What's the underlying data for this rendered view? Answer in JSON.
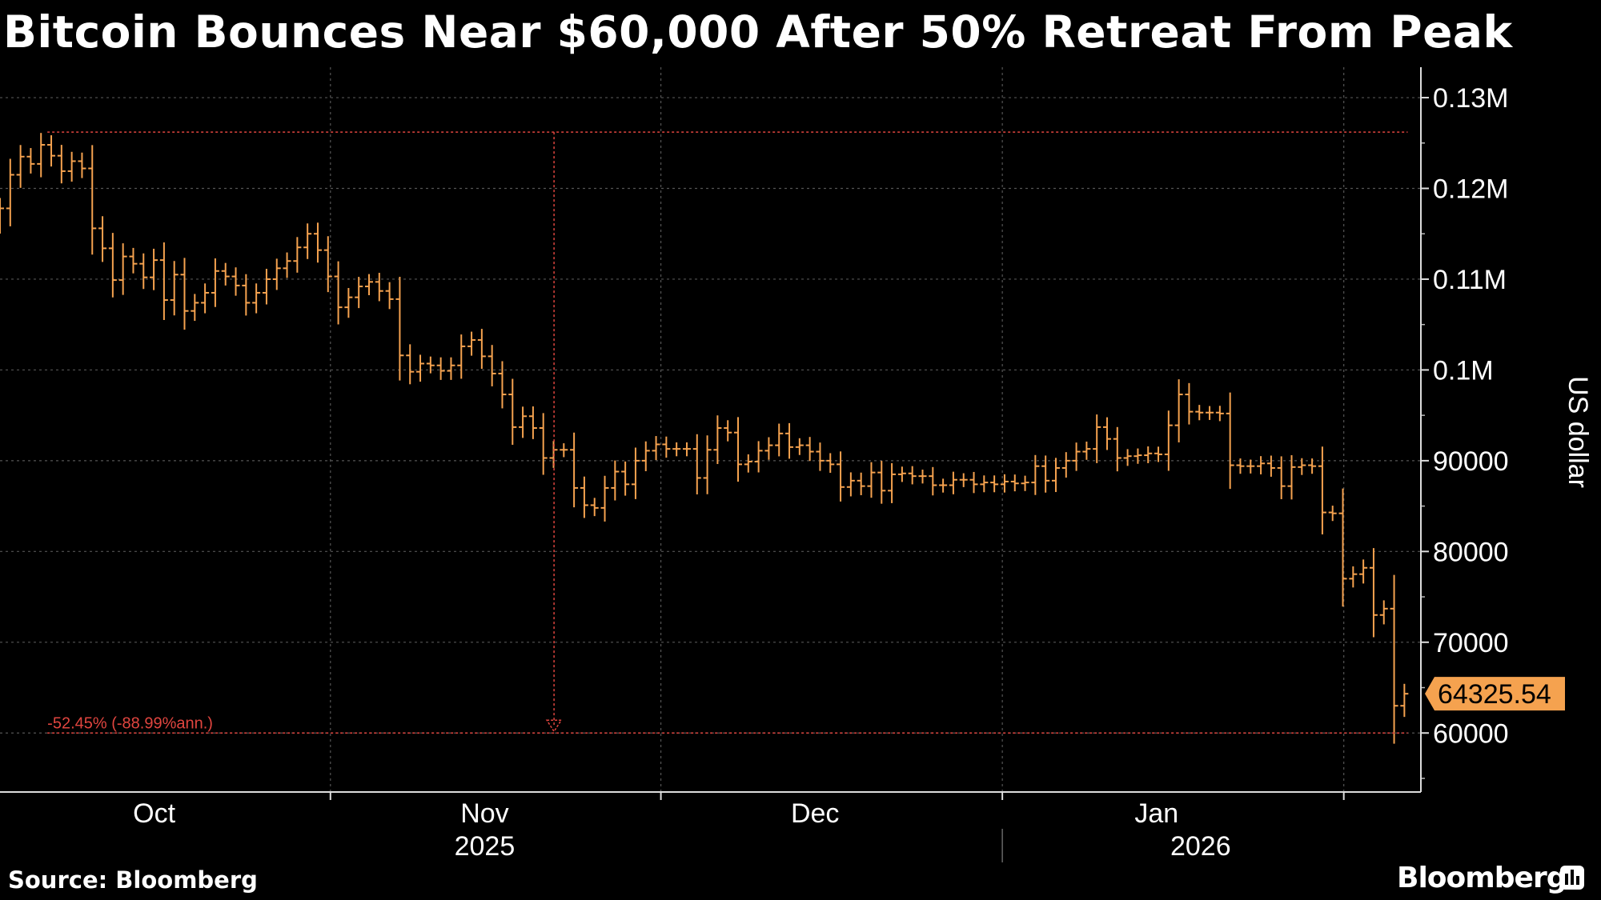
{
  "title": "Bitcoin Bounces Near $60,000 After 50% Retreat From Peak",
  "source": "Source: Bloomberg",
  "brand": "Bloomberg",
  "chart_data": {
    "type": "ohlc",
    "y_axis_label": "US dollar",
    "y_ticks": [
      {
        "value": 130000,
        "label": "0.13M"
      },
      {
        "value": 120000,
        "label": "0.12M"
      },
      {
        "value": 110000,
        "label": "0.11M"
      },
      {
        "value": 100000,
        "label": "0.1M"
      },
      {
        "value": 90000,
        "label": "90000"
      },
      {
        "value": 80000,
        "label": "80000"
      },
      {
        "value": 70000,
        "label": "70000"
      },
      {
        "value": 60000,
        "label": "60000"
      }
    ],
    "ylim": [
      53500,
      133000
    ],
    "x_months": [
      {
        "label": "Oct",
        "day": 14
      },
      {
        "label": "Nov",
        "day": 44
      },
      {
        "label": "Dec",
        "day": 74
      },
      {
        "label": "Jan",
        "day": 105
      }
    ],
    "x_years": [
      {
        "label": "2025",
        "day": 44
      },
      {
        "label": "2026",
        "day": 109
      }
    ],
    "x_grid_days": [
      30,
      60,
      91,
      122
    ],
    "x_year_divider_day": 91,
    "xlim": [
      0,
      129
    ],
    "last_value_label": "64325.54",
    "peak_value": 126200,
    "trough_value": 60000,
    "annotation": "-52.45% (-88.99%ann.)",
    "close_series": [
      117800,
      121500,
      123500,
      122700,
      124800,
      123600,
      121900,
      123000,
      122200,
      115600,
      113400,
      109900,
      112500,
      111700,
      110200,
      112100,
      107700,
      110500,
      106500,
      107400,
      108500,
      110900,
      110300,
      109300,
      107400,
      108500,
      110000,
      111200,
      112000,
      113500,
      115000,
      113200,
      110300,
      106900,
      108000,
      109200,
      109700,
      108700,
      107800,
      101600,
      99800,
      100700,
      100500,
      99900,
      100500,
      102600,
      103300,
      101500,
      99600,
      97300,
      93700,
      94900,
      93600,
      90300,
      91200,
      91200,
      87000,
      85100,
      84800,
      87000,
      88800,
      87400,
      90000,
      91100,
      91800,
      91300,
      91300,
      91300,
      88100,
      91200,
      93600,
      93100,
      89600,
      89900,
      91100,
      91700,
      93000,
      91500,
      91700,
      91000,
      90000,
      89600,
      87100,
      87800,
      87200,
      88700,
      86700,
      88500,
      88600,
      88300,
      88300,
      87300,
      87300,
      87900,
      87900,
      87400,
      87600,
      87400,
      87700,
      87500,
      87600,
      89400,
      87800,
      89200,
      90000,
      91000,
      91300,
      93700,
      92400,
      90300,
      90500,
      90600,
      90800,
      90700,
      93900,
      97300,
      95400,
      95300,
      95300,
      95200,
      89500,
      89400,
      89400,
      89700,
      89200,
      87200,
      89300,
      89500,
      89400,
      84300,
      84200,
      77000,
      77500,
      78200,
      73000,
      73700,
      63000,
      64325.54
    ],
    "note": "daily bars from late Sep 2025 to early Feb 2026, values estimated from gridlines"
  }
}
